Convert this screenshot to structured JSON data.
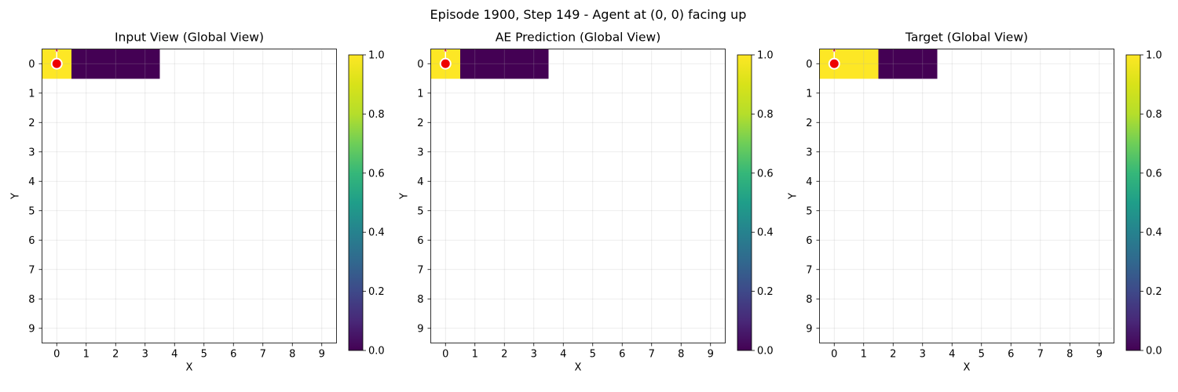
{
  "figure": {
    "suptitle": "Episode 1900, Step 149 - Agent at (0, 0) facing up"
  },
  "chart_data": [
    {
      "type": "heatmap",
      "title": "Input View (Global View)",
      "xlabel": "X",
      "ylabel": "Y",
      "x_ticks": [
        0,
        1,
        2,
        3,
        4,
        5,
        6,
        7,
        8,
        9
      ],
      "y_ticks": [
        0,
        1,
        2,
        3,
        4,
        5,
        6,
        7,
        8,
        9
      ],
      "grid": true,
      "cells": [
        {
          "x": 0,
          "y": 0,
          "value": 1.0
        },
        {
          "x": 1,
          "y": 0,
          "value": 0.0
        },
        {
          "x": 2,
          "y": 0,
          "value": 0.0
        },
        {
          "x": 3,
          "y": 0,
          "value": 0.0
        }
      ],
      "agent": {
        "x": 0,
        "y": 0,
        "facing": "up"
      },
      "colorbar": {
        "colormap": "viridis",
        "range": [
          0,
          1
        ],
        "ticks": [
          "0.0",
          "0.2",
          "0.4",
          "0.6",
          "0.8",
          "1.0"
        ]
      }
    },
    {
      "type": "heatmap",
      "title": "AE Prediction (Global View)",
      "xlabel": "X",
      "ylabel": "Y",
      "x_ticks": [
        0,
        1,
        2,
        3,
        4,
        5,
        6,
        7,
        8,
        9
      ],
      "y_ticks": [
        0,
        1,
        2,
        3,
        4,
        5,
        6,
        7,
        8,
        9
      ],
      "grid": true,
      "cells": [
        {
          "x": 0,
          "y": 0,
          "value": 1.0
        },
        {
          "x": 1,
          "y": 0,
          "value": 0.0
        },
        {
          "x": 2,
          "y": 0,
          "value": 0.0
        },
        {
          "x": 3,
          "y": 0,
          "value": 0.0
        }
      ],
      "agent": {
        "x": 0,
        "y": 0,
        "facing": "up"
      },
      "colorbar": {
        "colormap": "viridis",
        "range": [
          0,
          1
        ],
        "ticks": [
          "0.0",
          "0.2",
          "0.4",
          "0.6",
          "0.8",
          "1.0"
        ]
      }
    },
    {
      "type": "heatmap",
      "title": "Target (Global View)",
      "xlabel": "X",
      "ylabel": "Y",
      "x_ticks": [
        0,
        1,
        2,
        3,
        4,
        5,
        6,
        7,
        8,
        9
      ],
      "y_ticks": [
        0,
        1,
        2,
        3,
        4,
        5,
        6,
        7,
        8,
        9
      ],
      "grid": true,
      "cells": [
        {
          "x": 0,
          "y": 0,
          "value": 1.0
        },
        {
          "x": 1,
          "y": 0,
          "value": 1.0
        },
        {
          "x": 2,
          "y": 0,
          "value": 0.0
        },
        {
          "x": 3,
          "y": 0,
          "value": 0.0
        }
      ],
      "agent": {
        "x": 0,
        "y": 0,
        "facing": "up"
      },
      "colorbar": {
        "colormap": "viridis",
        "range": [
          0,
          1
        ],
        "ticks": [
          "0.0",
          "0.2",
          "0.4",
          "0.6",
          "0.8",
          "1.0"
        ]
      }
    }
  ]
}
